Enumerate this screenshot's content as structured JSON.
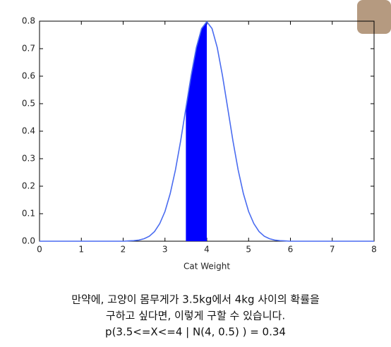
{
  "chart_data": {
    "type": "area-line",
    "x_label": "Cat Weight",
    "x": [
      0,
      0.5,
      1,
      1.5,
      2,
      2.125,
      2.25,
      2.375,
      2.5,
      2.625,
      2.75,
      2.875,
      3,
      3.125,
      3.25,
      3.375,
      3.5,
      3.625,
      3.75,
      3.875,
      4,
      4.125,
      4.25,
      4.375,
      4.5,
      4.625,
      4.75,
      4.875,
      5,
      5.125,
      5.25,
      5.375,
      5.5,
      5.625,
      5.75,
      5.875,
      6,
      6.5,
      7,
      7.5,
      8
    ],
    "values": [
      0,
      0,
      0,
      0,
      0,
      0.001,
      0.002,
      0.004,
      0.009,
      0.018,
      0.035,
      0.064,
      0.108,
      0.173,
      0.259,
      0.365,
      0.484,
      0.602,
      0.704,
      0.773,
      0.798,
      0.773,
      0.704,
      0.602,
      0.484,
      0.365,
      0.259,
      0.173,
      0.108,
      0.064,
      0.035,
      0.018,
      0.009,
      0.004,
      0.002,
      0.001,
      0,
      0,
      0,
      0,
      0
    ],
    "color": "#4a6cf0",
    "shade": {
      "from": 3.5,
      "to": 4,
      "color": "#0000ff"
    },
    "xlim": [
      0,
      8
    ],
    "xticks": [
      0,
      1,
      2,
      3,
      4,
      5,
      6,
      7,
      8
    ],
    "ylim": [
      0,
      0.8
    ],
    "yticks": [
      {
        "value": 0,
        "label": "0.0"
      },
      0.1,
      0.2,
      0.3,
      0.4,
      0.5,
      0.6,
      0.7,
      0.8
    ],
    "caption": [
      "만약에, 고양이 몸무게가 3.5kg에서 4kg 사이의 확률을",
      "구하고 싶다면, 이렇게 구할 수 있습니다.",
      "p(3.5<=X<=4 | N(4, 0.5) ) = 0.34"
    ]
  }
}
